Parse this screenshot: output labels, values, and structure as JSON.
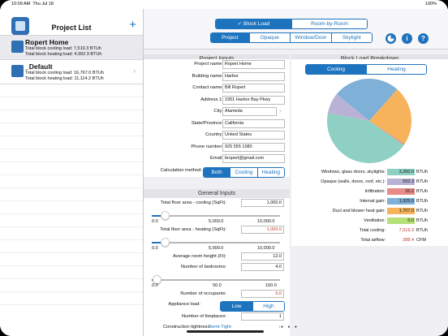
{
  "status": {
    "time": "10:09 AM",
    "date": "Thu Jul 18",
    "battery": "100%"
  },
  "sidebar": {
    "title": "Project List",
    "add_label": "+",
    "projects": [
      {
        "name": "Ropert Home",
        "cooling": "Total block cooling load: 7,519.3 BTUh",
        "heating": "Total block heating load: 4,992.9 BTUh"
      },
      {
        "name": "_Default",
        "cooling": "Total block cooling load: 16,767.0 BTUh",
        "heating": "Total block heating load: 11,114.2 BTUh"
      }
    ]
  },
  "topbar": {
    "load_modes": [
      "Block Load",
      "Room-by-Room"
    ],
    "active_mode_check": "✓",
    "tabs": [
      "Project",
      "Opaque",
      "Window/Door",
      "Skylight"
    ],
    "info_label": "i",
    "help_label": "?"
  },
  "project_inputs": {
    "title": "Project Inputs",
    "fields": [
      {
        "label": "Project name:",
        "value": "Ropert Home"
      },
      {
        "label": "Building name:",
        "value": "Harbor"
      },
      {
        "label": "Contact name:",
        "value": "Bill Ropert"
      },
      {
        "label": "Address 1:",
        "value": "1951 Harbor Bay Pkwy"
      },
      {
        "label": "City:",
        "value": "Alameda"
      },
      {
        "label": "State/Province:",
        "value": "California"
      },
      {
        "label": "Country:",
        "value": "United States"
      },
      {
        "label": "Phone number:",
        "value": "925 555 1080"
      },
      {
        "label": "Email:",
        "value": "bropert@gmail.com"
      }
    ],
    "calc_method_label": "Calculation method:",
    "calc_methods": [
      "Both",
      "Cooling",
      "Heating"
    ]
  },
  "general_inputs": {
    "title": "General Inputs",
    "cool_area_label": "Total floor area - cooling (SqFt):",
    "cool_area_value": "1,000.0",
    "cool_ticks": [
      "0.0",
      "5,000.0",
      "10,000.0"
    ],
    "cool_area_fraction": 0.1,
    "heat_area_label": "Total floor area - heating (SqFt):",
    "heat_area_value": "1,000.0",
    "heat_ticks": [
      "0.0",
      "5,000.0",
      "10,000.0"
    ],
    "heat_area_fraction": 0.1,
    "ceiling_label": "Average room height (Ft):",
    "ceiling_value": "12.0",
    "bedrooms_label": "Number of bedrooms:",
    "bedrooms_value": "4.0",
    "bedroom_ticks": [
      "0.0",
      "50.0",
      "100.0"
    ],
    "bedrooms_fraction": 0.04,
    "occupants_label": "Number of occupants:",
    "occupants_value": "5.0",
    "appliance_label": "Appliance load:",
    "appliance_options": [
      "Low",
      "High"
    ],
    "fireplaces_label": "Number of fireplaces:",
    "fireplaces_value": "1",
    "tightness_label": "Construction tightness:",
    "tightness_value": "Semi-Tight"
  },
  "breakdown": {
    "title": "Block Load Breakdown",
    "tabs": [
      "Cooling",
      "Heating"
    ],
    "rows": [
      {
        "label": "Windows, glass doors, skylights:",
        "value": "3,260.0",
        "unit": "BTUh",
        "color": "#8fd0c4",
        "num": 3260.0
      },
      {
        "label": "Opaque (walls, doors, roof, etc.):",
        "value": "592.3",
        "unit": "BTUh",
        "color": "#b9b2d6",
        "num": 592.3
      },
      {
        "label": "Infiltration:",
        "value": "35.2",
        "unit": "BTUh",
        "color": "#e88a8a",
        "num": 35.2
      },
      {
        "label": "Internal gain:",
        "value": "1,925.0",
        "unit": "BTUh",
        "color": "#7fb0d8",
        "num": 1925.0
      },
      {
        "label": "Duct and blower heat gain:",
        "value": "1,707.0",
        "unit": "BTUh",
        "color": "#f7b35c",
        "num": 1707.0
      },
      {
        "label": "Ventilation:",
        "value": "0.0",
        "unit": "BTUh",
        "color": "#b6e07a",
        "num": 0.0
      }
    ],
    "total_label": "Total cooling:",
    "total_value": "7,519.3",
    "total_unit": "BTUh",
    "airflow_label": "Total airflow:",
    "airflow_value": "288.4",
    "airflow_unit": "CFM"
  }
}
